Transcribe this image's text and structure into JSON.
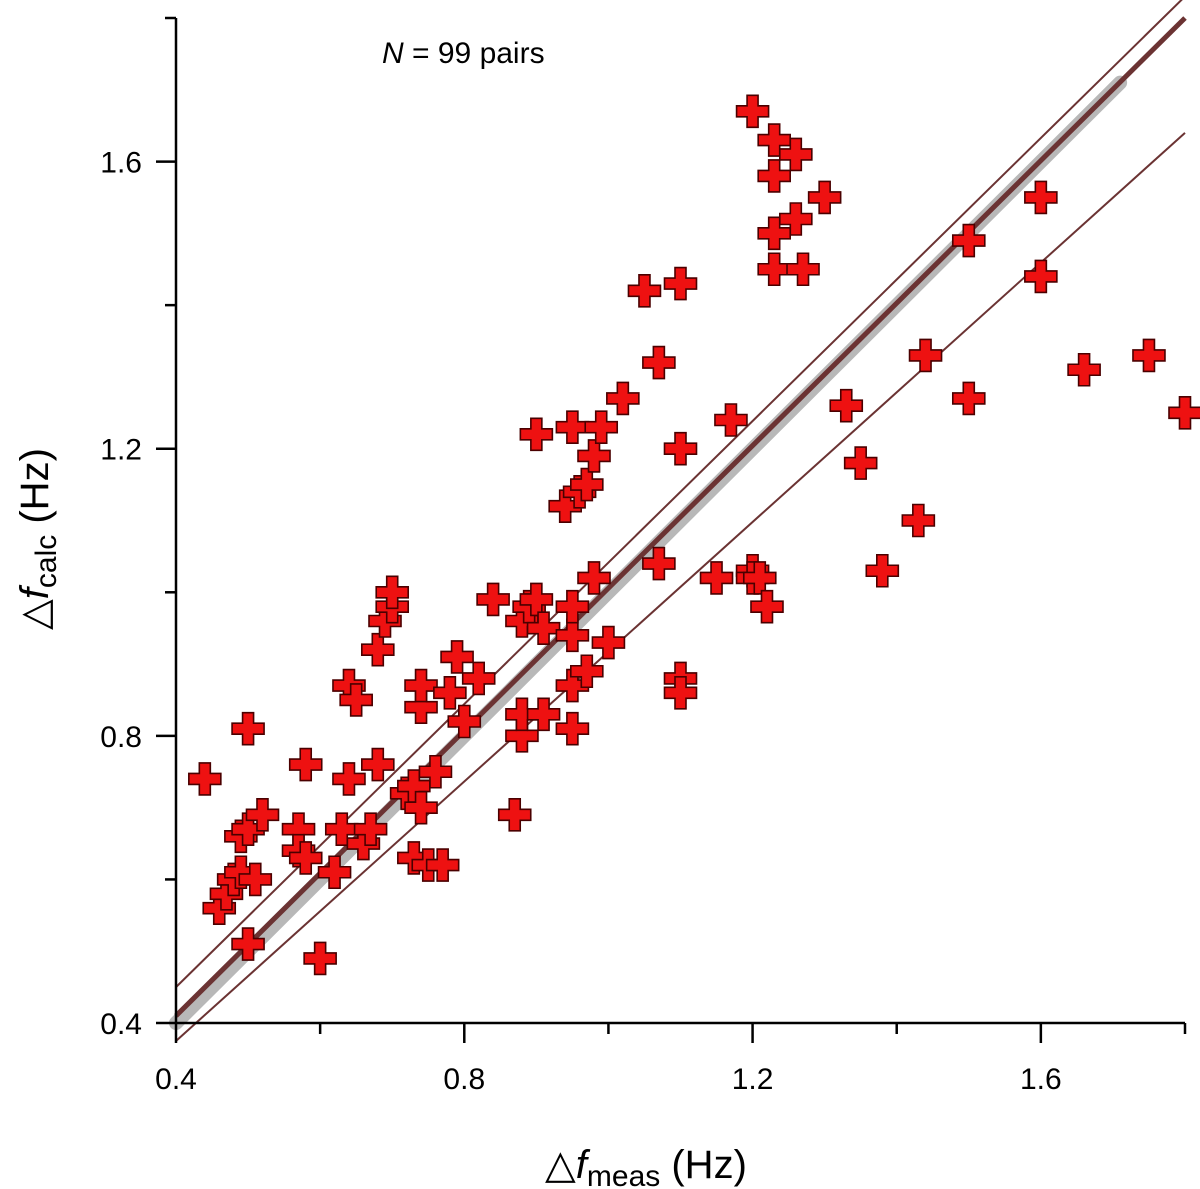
{
  "chart_data": {
    "type": "scatter",
    "annotation": {
      "italic": "N",
      "text": " = 99 pairs"
    },
    "xlabel": {
      "symbol": "△",
      "var": "f",
      "sub": "meas",
      "unit": " (Hz)"
    },
    "ylabel": {
      "symbol": "△",
      "var": "f",
      "sub": "calc",
      "unit": " (Hz)"
    },
    "xlim": [
      0.4,
      1.8
    ],
    "ylim": [
      0.4,
      1.8
    ],
    "x_ticks": [
      0.4,
      0.8,
      1.2,
      1.6
    ],
    "y_ticks": [
      0.4,
      0.8,
      1.2,
      1.6
    ],
    "x_tick_labels": [
      "0.4",
      "0.8",
      "1.2",
      "1.6"
    ],
    "y_tick_labels": [
      "0.4",
      "0.8",
      "1.2",
      "1.6"
    ],
    "grid": false,
    "colors": {
      "marker_fill": "#ee1111",
      "marker_stroke": "#4a0000",
      "fit_line": "#6b3333",
      "band_line": "#6b3333",
      "identity_line": "#b8b8b8"
    },
    "lines": {
      "identity": {
        "x": [
          0.4,
          1.71
        ],
        "y": [
          0.4,
          1.71
        ]
      },
      "fit": {
        "x": [
          0.4,
          1.8
        ],
        "y": [
          0.41,
          1.8
        ]
      },
      "upper_band": {
        "x": [
          0.4,
          1.8
        ],
        "y": [
          0.45,
          1.83
        ]
      },
      "lower_band": {
        "x": [
          0.4,
          1.8
        ],
        "y": [
          0.375,
          1.64
        ]
      }
    },
    "points": [
      [
        0.44,
        0.74
      ],
      [
        0.46,
        0.56
      ],
      [
        0.47,
        0.58
      ],
      [
        0.48,
        0.6
      ],
      [
        0.49,
        0.66
      ],
      [
        0.49,
        0.61
      ],
      [
        0.5,
        0.81
      ],
      [
        0.5,
        0.67
      ],
      [
        0.5,
        0.51
      ],
      [
        0.51,
        0.6
      ],
      [
        0.52,
        0.69
      ],
      [
        0.57,
        0.67
      ],
      [
        0.57,
        0.64
      ],
      [
        0.58,
        0.76
      ],
      [
        0.58,
        0.63
      ],
      [
        0.6,
        0.49
      ],
      [
        0.62,
        0.61
      ],
      [
        0.63,
        0.67
      ],
      [
        0.64,
        0.74
      ],
      [
        0.64,
        0.87
      ],
      [
        0.65,
        0.85
      ],
      [
        0.66,
        0.65
      ],
      [
        0.67,
        0.67
      ],
      [
        0.68,
        0.76
      ],
      [
        0.68,
        0.92
      ],
      [
        0.69,
        0.96
      ],
      [
        0.7,
        0.98
      ],
      [
        0.7,
        1.0
      ],
      [
        0.72,
        0.72
      ],
      [
        0.73,
        0.73
      ],
      [
        0.73,
        0.63
      ],
      [
        0.74,
        0.84
      ],
      [
        0.74,
        0.87
      ],
      [
        0.74,
        0.7
      ],
      [
        0.75,
        0.62
      ],
      [
        0.76,
        0.75
      ],
      [
        0.77,
        0.62
      ],
      [
        0.78,
        0.86
      ],
      [
        0.79,
        0.91
      ],
      [
        0.8,
        0.82
      ],
      [
        0.82,
        0.88
      ],
      [
        0.84,
        0.99
      ],
      [
        0.87,
        0.69
      ],
      [
        0.88,
        0.8
      ],
      [
        0.88,
        0.83
      ],
      [
        0.88,
        0.96
      ],
      [
        0.89,
        0.98
      ],
      [
        0.9,
        1.22
      ],
      [
        0.91,
        0.83
      ],
      [
        0.9,
        0.99
      ],
      [
        0.91,
        0.95
      ],
      [
        0.94,
        1.12
      ],
      [
        0.95,
        0.81
      ],
      [
        0.95,
        0.87
      ],
      [
        0.95,
        0.94
      ],
      [
        0.95,
        0.98
      ],
      [
        0.95,
        1.23
      ],
      [
        0.96,
        1.14
      ],
      [
        0.97,
        0.89
      ],
      [
        0.97,
        1.15
      ],
      [
        0.98,
        1.02
      ],
      [
        0.98,
        1.19
      ],
      [
        0.99,
        1.23
      ],
      [
        1.0,
        0.93
      ],
      [
        1.02,
        1.27
      ],
      [
        1.05,
        1.42
      ],
      [
        1.07,
        1.32
      ],
      [
        1.07,
        1.04
      ],
      [
        1.1,
        1.43
      ],
      [
        1.1,
        1.2
      ],
      [
        1.1,
        0.88
      ],
      [
        1.1,
        0.86
      ],
      [
        1.15,
        1.02
      ],
      [
        1.17,
        1.24
      ],
      [
        1.2,
        1.03
      ],
      [
        1.2,
        1.02
      ],
      [
        1.21,
        1.02
      ],
      [
        1.2,
        1.67
      ],
      [
        1.22,
        0.98
      ],
      [
        1.23,
        1.63
      ],
      [
        1.23,
        1.58
      ],
      [
        1.23,
        1.5
      ],
      [
        1.23,
        1.45
      ],
      [
        1.26,
        1.61
      ],
      [
        1.26,
        1.52
      ],
      [
        1.27,
        1.45
      ],
      [
        1.3,
        1.55
      ],
      [
        1.33,
        1.26
      ],
      [
        1.35,
        1.18
      ],
      [
        1.38,
        1.03
      ],
      [
        1.43,
        1.1
      ],
      [
        1.44,
        1.33
      ],
      [
        1.5,
        1.27
      ],
      [
        1.5,
        1.49
      ],
      [
        1.6,
        1.55
      ],
      [
        1.6,
        1.44
      ],
      [
        1.66,
        1.31
      ],
      [
        1.75,
        1.33
      ],
      [
        1.8,
        1.25
      ]
    ]
  }
}
